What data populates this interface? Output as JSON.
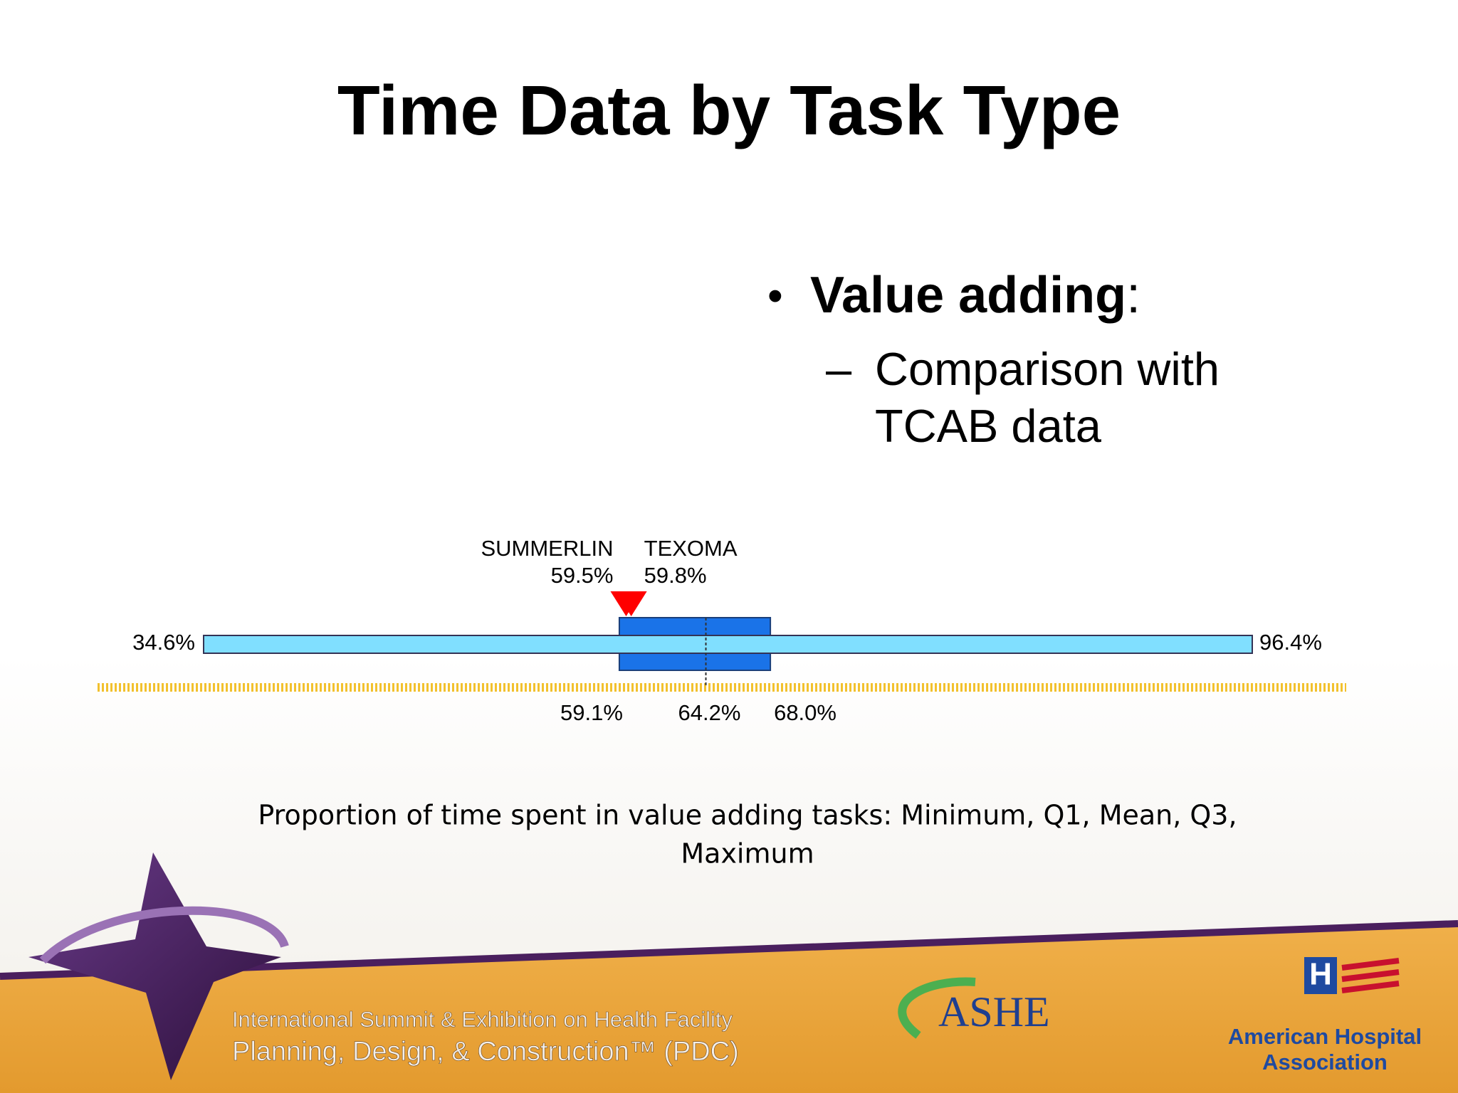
{
  "chart_data": {
    "type": "boxplot",
    "title": "Time Data by Task Type",
    "bullet": {
      "bold": "Value adding",
      "rest": ":"
    },
    "sub_bullet": {
      "dash": "–",
      "lines": [
        "Comparison with",
        "TCAB data"
      ]
    },
    "values": [
      34.6,
      59.1,
      64.2,
      68.0,
      96.4
    ],
    "value_labels": [
      "34.6%",
      "59.1%",
      "64.2%",
      "68.0%",
      "96.4%"
    ],
    "markers": [
      {
        "name": "SUMMERLIN",
        "value": 59.5,
        "value_label": "59.5%",
        "color": "#ff0000"
      },
      {
        "name": "TEXOMA",
        "value": 59.8,
        "value_label": "59.8%",
        "color": "#ff0000"
      }
    ],
    "whisker_color": "#80dfff",
    "box_color": "#1a73e8",
    "caption": [
      "Proportion of time spent  in value adding tasks: Minimum, Q1, Mean, Q3,",
      "Maximum"
    ]
  },
  "footer": {
    "summit": [
      "International Summit & Exhibition on Health Facility",
      "Planning, Design, & Construction™ (PDC)"
    ],
    "ashe": "ASHE",
    "aha": [
      "American Hospital",
      "Association"
    ]
  }
}
